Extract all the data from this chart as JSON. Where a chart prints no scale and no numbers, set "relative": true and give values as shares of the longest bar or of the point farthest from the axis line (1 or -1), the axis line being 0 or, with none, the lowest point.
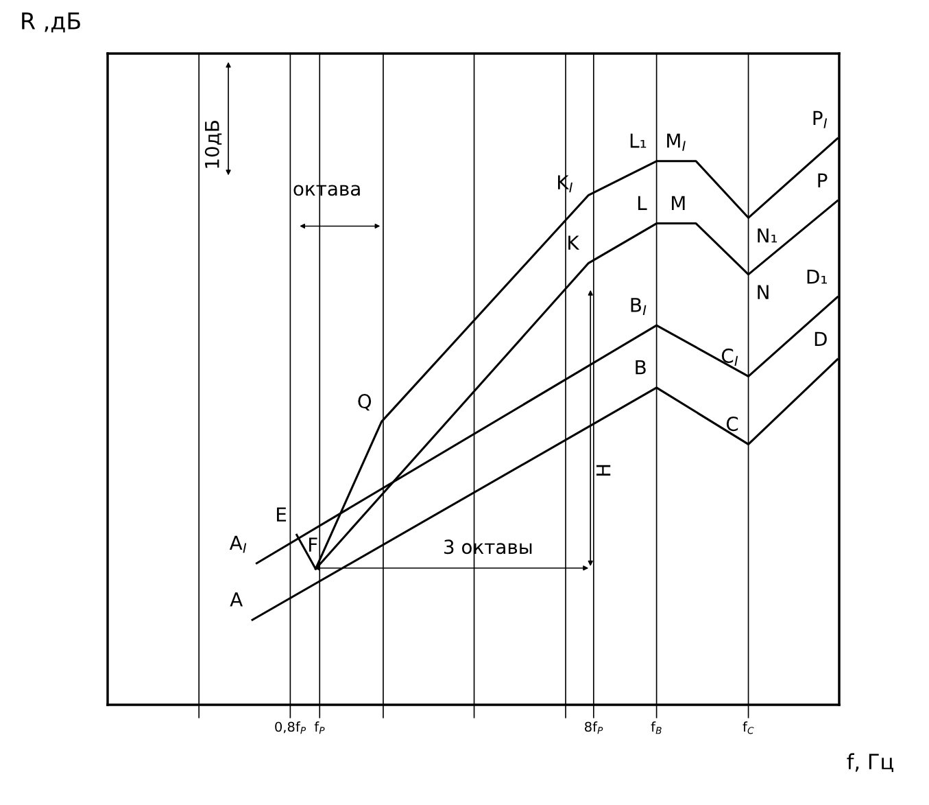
{
  "chart_data": {
    "type": "line",
    "relative": true,
    "xlabel": "f, Гц",
    "ylabel": "R ,дБ",
    "log": "x",
    "xlim": [
      0.2,
      51.6
    ],
    "xticks": [
      {
        "value": 0.4,
        "label": null
      },
      {
        "value": 1.62,
        "label": null
      },
      {
        "value": 3.23,
        "label": null
      },
      {
        "value": 6.47,
        "label": null
      },
      {
        "value": 0.8,
        "label": "0,8f$_{P}$"
      },
      {
        "value": 1,
        "label": "f$_{P}$"
      },
      {
        "value": 8,
        "label": "8f$_{P}$"
      },
      {
        "value": 12.9,
        "label": "f$_{B}$"
      },
      {
        "value": 25.9,
        "label": "f$_{C}$"
      }
    ],
    "grid": "x",
    "tick_labels": "x",
    "marker": "none",
    "line_style": "solid",
    "series": [
      {
        "color": "#000000",
        "x": [
          0.6,
          12.9,
          25.9,
          50.9
        ],
        "values": [
          0.15,
          0.56,
          0.46,
          0.61
        ]
      },
      {
        "color": "#000000",
        "x": [
          0.62,
          12.9,
          25.9,
          50.9
        ],
        "values": [
          0.25,
          0.67,
          0.58,
          0.72
        ]
      },
      {
        "color": "#000000",
        "x": [
          0.84,
          0.97,
          7.7,
          12.9,
          17.4,
          25.9,
          50.9
        ],
        "values": [
          0.3,
          0.24,
          0.78,
          0.85,
          0.85,
          0.76,
          0.89
        ]
      },
      {
        "color": "#000000",
        "x": [
          0.97,
          1.6,
          7.7,
          12.9,
          17.4,
          25.9,
          50.9
        ],
        "values": [
          0.24,
          0.5,
          0.9,
          0.96,
          0.96,
          0.86,
          1
        ]
      }
    ],
    "annotations": [
      {
        "text": "A",
        "x": 0.6,
        "y": 0.15
      },
      {
        "text": "A$_{I}$",
        "x": 0.62,
        "y": 0.25
      },
      {
        "text": "E",
        "x": 0.84,
        "y": 0.3
      },
      {
        "text": "F",
        "x": 0.97,
        "y": 0.24
      },
      {
        "text": "Q",
        "x": 1.6,
        "y": 0.5
      },
      {
        "text": "K",
        "x": 7.7,
        "y": 0.78
      },
      {
        "text": "K$_{I}$",
        "x": 7.7,
        "y": 0.9
      },
      {
        "text": "L",
        "x": 12.9,
        "y": 0.85
      },
      {
        "text": "M",
        "x": 17.4,
        "y": 0.85
      },
      {
        "text": "L₁",
        "x": 12.9,
        "y": 0.96
      },
      {
        "text": "M$_{I}$",
        "x": 17.4,
        "y": 0.96
      },
      {
        "text": "N",
        "x": 25.9,
        "y": 0.76
      },
      {
        "text": "N₁",
        "x": 25.9,
        "y": 0.86
      },
      {
        "text": "P",
        "x": 50.9,
        "y": 0.89
      },
      {
        "text": "P$_{I}$",
        "x": 50.9,
        "y": 1
      },
      {
        "text": "B",
        "x": 12.9,
        "y": 0.56
      },
      {
        "text": "B$_{I}$",
        "x": 12.9,
        "y": 0.67
      },
      {
        "text": "C",
        "x": 25.9,
        "y": 0.46
      },
      {
        "text": "C$_{I}$",
        "x": 25.9,
        "y": 0.58
      },
      {
        "text": "D",
        "x": 50.9,
        "y": 0.61
      },
      {
        "text": "D₁",
        "x": 50.9,
        "y": 0.72
      },
      "10дБ",
      "октава",
      "3 октавы",
      "H"
    ]
  }
}
